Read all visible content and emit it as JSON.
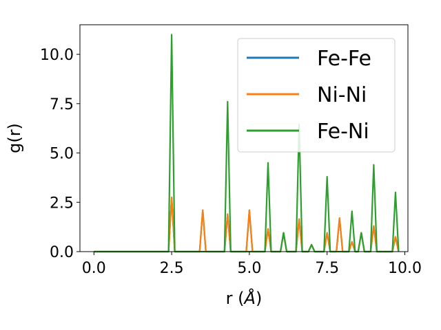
{
  "chart_data": {
    "type": "line",
    "xlabel_prefix": "r (",
    "xlabel_unit": "Å",
    "xlabel_suffix": ")",
    "ylabel": "g(r)",
    "xlim": [
      -0.45,
      10.1
    ],
    "ylim": [
      0,
      11.5
    ],
    "xticks": [
      0.0,
      2.5,
      5.0,
      7.5,
      10.0
    ],
    "xtick_labels": [
      "0.0",
      "2.5",
      "5.0",
      "7.5",
      "10.0"
    ],
    "yticks": [
      0.0,
      2.5,
      5.0,
      7.5,
      10.0
    ],
    "ytick_labels": [
      "0.0",
      "2.5",
      "5.0",
      "7.5",
      "10.0"
    ],
    "grid": false,
    "legend_position": "top-right",
    "series": [
      {
        "name": "Fe-Fe",
        "color": "#1f77b4",
        "x": [
          0.0,
          2.4,
          2.5,
          2.6,
          3.4,
          3.5,
          3.6,
          4.2,
          4.3,
          4.4,
          4.9,
          5.0,
          5.1,
          5.5,
          5.6,
          5.7,
          6.0,
          6.1,
          6.2,
          6.5,
          6.6,
          6.7,
          6.9,
          7.0,
          7.1,
          7.4,
          7.5,
          7.6,
          7.8,
          7.9,
          8.0,
          8.2,
          8.3,
          8.4,
          8.5,
          8.6,
          8.7,
          8.9,
          9.0,
          9.1,
          9.6,
          9.7,
          9.8
        ],
        "y": [
          0,
          0,
          2.75,
          0,
          0,
          2.1,
          0,
          0,
          1.9,
          0,
          0,
          2.1,
          0,
          0,
          1.15,
          0,
          0,
          0.95,
          0,
          0,
          1.65,
          0,
          0,
          0.35,
          0,
          0,
          0.95,
          0,
          0,
          1.7,
          0,
          0,
          0.5,
          0,
          0,
          0.95,
          0,
          0,
          1.3,
          0,
          0,
          0.75,
          0
        ]
      },
      {
        "name": "Ni-Ni",
        "color": "#ff7f0e",
        "x": [
          0.0,
          2.4,
          2.5,
          2.6,
          3.4,
          3.5,
          3.6,
          4.2,
          4.3,
          4.4,
          4.9,
          5.0,
          5.1,
          5.5,
          5.6,
          5.7,
          6.0,
          6.1,
          6.2,
          6.5,
          6.6,
          6.7,
          6.9,
          7.0,
          7.1,
          7.4,
          7.5,
          7.6,
          7.8,
          7.9,
          8.0,
          8.2,
          8.3,
          8.4,
          8.5,
          8.6,
          8.7,
          8.9,
          9.0,
          9.1,
          9.6,
          9.7,
          9.8
        ],
        "y": [
          0,
          0,
          2.75,
          0,
          0,
          2.1,
          0,
          0,
          1.9,
          0,
          0,
          2.1,
          0,
          0,
          1.15,
          0,
          0,
          0.95,
          0,
          0,
          1.65,
          0,
          0,
          0.35,
          0,
          0,
          0.95,
          0,
          0,
          1.7,
          0,
          0,
          0.5,
          0,
          0,
          0.95,
          0,
          0,
          1.3,
          0,
          0,
          0.75,
          0
        ]
      },
      {
        "name": "Fe-Ni",
        "color": "#2ca02c",
        "x": [
          0.0,
          2.4,
          2.5,
          2.6,
          4.2,
          4.3,
          4.4,
          5.5,
          5.6,
          5.7,
          6.0,
          6.1,
          6.2,
          6.5,
          6.6,
          6.7,
          6.9,
          7.0,
          7.1,
          7.4,
          7.5,
          7.6,
          8.2,
          8.3,
          8.4,
          8.5,
          8.6,
          8.7,
          8.9,
          9.0,
          9.1,
          9.6,
          9.7,
          9.8
        ],
        "y": [
          0,
          0,
          11.0,
          0,
          0,
          7.6,
          0,
          0,
          4.5,
          0,
          0,
          0.95,
          0,
          0,
          6.45,
          0,
          0,
          0.35,
          0,
          0,
          3.8,
          0,
          0,
          2.05,
          0,
          0,
          0.95,
          0,
          0,
          4.4,
          0,
          0,
          3.0,
          0
        ]
      }
    ]
  }
}
